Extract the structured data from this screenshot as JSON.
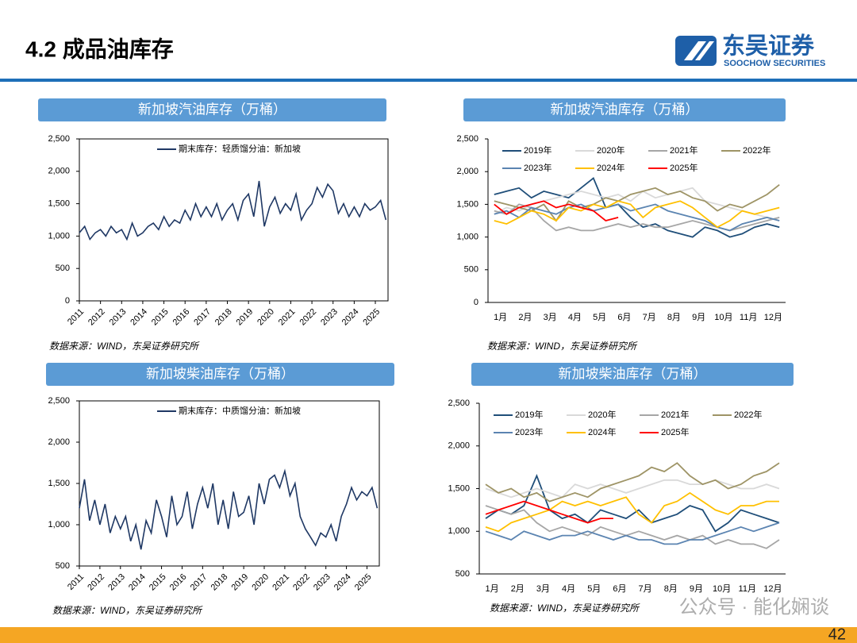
{
  "header": {
    "title": "4.2 成品油库存",
    "logo_cn": "东吴证券",
    "logo_en": "SOOCHOW SECURITIES"
  },
  "page_number": "42",
  "watermark": "公众号 · 能化娴谈",
  "chart_data": [
    {
      "type": "line",
      "title": "新加坡汽油库存（万桶）",
      "source": "数据来源：WIND，东吴证券研究所",
      "x": [
        2011,
        2011.25,
        2011.5,
        2011.75,
        2012,
        2012.25,
        2012.5,
        2012.75,
        2013,
        2013.25,
        2013.5,
        2013.75,
        2014,
        2014.25,
        2014.5,
        2014.75,
        2015,
        2015.25,
        2015.5,
        2015.75,
        2016,
        2016.25,
        2016.5,
        2016.75,
        2017,
        2017.25,
        2017.5,
        2017.75,
        2018,
        2018.25,
        2018.5,
        2018.75,
        2019,
        2019.25,
        2019.5,
        2019.75,
        2020,
        2020.25,
        2020.5,
        2020.75,
        2021,
        2021.25,
        2021.5,
        2021.75,
        2022,
        2022.25,
        2022.5,
        2022.75,
        2023,
        2023.25,
        2023.5,
        2023.75,
        2024,
        2024.25,
        2024.5,
        2024.75,
        2025,
        2025.25,
        2025.5
      ],
      "series": [
        {
          "name": "期末库存：轻质馏分油：新加坡",
          "color": "#1f3864",
          "values": [
            1050,
            1150,
            950,
            1050,
            1100,
            1000,
            1150,
            1050,
            1100,
            950,
            1200,
            1000,
            1050,
            1150,
            1200,
            1100,
            1300,
            1150,
            1250,
            1200,
            1400,
            1250,
            1500,
            1300,
            1450,
            1300,
            1500,
            1250,
            1400,
            1500,
            1250,
            1550,
            1650,
            1300,
            1850,
            1150,
            1450,
            1600,
            1350,
            1500,
            1400,
            1650,
            1250,
            1400,
            1500,
            1750,
            1600,
            1800,
            1700,
            1350,
            1500,
            1300,
            1450,
            1300,
            1500,
            1400,
            1450,
            1550,
            1250
          ]
        }
      ],
      "xlim": [
        2011,
        2025.6
      ],
      "xticks": [
        2011,
        2012,
        2013,
        2014,
        2015,
        2016,
        2017,
        2018,
        2019,
        2020,
        2021,
        2022,
        2023,
        2024,
        2025
      ],
      "ylim": [
        0,
        2500
      ],
      "yticks": [
        0,
        500,
        {
          "value": 1000,
          "label": "1,000"
        },
        {
          "value": 1500,
          "label": "1,500"
        },
        {
          "value": 2000,
          "label": "2,000"
        },
        {
          "value": 2500,
          "label": "2,500"
        }
      ]
    },
    {
      "type": "line",
      "title": "新加坡汽油库存（万桶）",
      "source": "数据来源：WIND，东吴证券研究所",
      "categories": [
        "1月",
        null,
        "2月",
        null,
        "3月",
        null,
        "4月",
        null,
        "5月",
        null,
        "6月",
        null,
        "7月",
        null,
        "8月",
        null,
        "9月",
        null,
        "10月",
        null,
        "11月",
        null,
        "12月",
        null
      ],
      "series": [
        {
          "name": "2019年",
          "color": "#1f4e79",
          "values": [
            1650,
            1700,
            1750,
            1600,
            1700,
            1650,
            1600,
            1750,
            1900,
            1450,
            1500,
            1300,
            1150,
            1200,
            1100,
            1050,
            1000,
            1150,
            1100,
            1000,
            1050,
            1150,
            1200,
            1150
          ]
        },
        {
          "name": "2020年",
          "color": "#d9d9d9",
          "values": [
            1350,
            1450,
            1400,
            1500,
            1550,
            1600,
            1650,
            1700,
            1650,
            1600,
            1650,
            1550,
            1700,
            1600,
            1650,
            1700,
            1750,
            1550,
            1500,
            1450,
            1400,
            1350,
            1300,
            1250
          ]
        },
        {
          "name": "2021年",
          "color": "#a6a6a6",
          "values": [
            1400,
            1350,
            1500,
            1450,
            1250,
            1100,
            1150,
            1100,
            1100,
            1150,
            1200,
            1150,
            1200,
            1150,
            1150,
            1200,
            1250,
            1200,
            1150,
            1100,
            1150,
            1200,
            1250,
            1300
          ]
        },
        {
          "name": "2022年",
          "color": "#9e9466",
          "values": [
            1550,
            1500,
            1450,
            1400,
            1500,
            1250,
            1550,
            1450,
            1500,
            1600,
            1550,
            1650,
            1700,
            1750,
            1650,
            1700,
            1600,
            1550,
            1400,
            1500,
            1450,
            1550,
            1650,
            1800
          ]
        },
        {
          "name": "2023年",
          "color": "#5b84b1",
          "values": [
            1350,
            1400,
            1300,
            1450,
            1400,
            1350,
            1450,
            1500,
            1400,
            1450,
            1500,
            1400,
            1450,
            1500,
            1400,
            1350,
            1300,
            1250,
            1150,
            1100,
            1200,
            1250,
            1300,
            1250
          ]
        },
        {
          "name": "2024年",
          "color": "#ffc000",
          "values": [
            1250,
            1200,
            1300,
            1400,
            1350,
            1250,
            1450,
            1400,
            1500,
            1450,
            1550,
            1500,
            1300,
            1450,
            1500,
            1550,
            1450,
            1300,
            1150,
            1250,
            1400,
            1350,
            1400,
            1450
          ]
        },
        {
          "name": "2025年",
          "color": "#ff0000",
          "values": [
            1500,
            1350,
            1450,
            1500,
            1550,
            1450,
            1500,
            1450,
            1400,
            1250,
            1300,
            null,
            null,
            null,
            null,
            null,
            null,
            null,
            null,
            null,
            null,
            null,
            null,
            null
          ]
        }
      ],
      "ylim": [
        0,
        2500
      ],
      "yticks": [
        0,
        500,
        {
          "value": 1000,
          "label": "1,000"
        },
        {
          "value": 1500,
          "label": "1,500"
        },
        {
          "value": 2000,
          "label": "2,000"
        },
        {
          "value": 2500,
          "label": "2,500"
        }
      ]
    },
    {
      "type": "line",
      "title": "新加坡柴油库存（万桶）",
      "source": "数据来源：WIND，东吴证券研究所",
      "x": [
        2011,
        2011.25,
        2011.5,
        2011.75,
        2012,
        2012.25,
        2012.5,
        2012.75,
        2013,
        2013.25,
        2013.5,
        2013.75,
        2014,
        2014.25,
        2014.5,
        2014.75,
        2015,
        2015.25,
        2015.5,
        2015.75,
        2016,
        2016.25,
        2016.5,
        2016.75,
        2017,
        2017.25,
        2017.5,
        2017.75,
        2018,
        2018.25,
        2018.5,
        2018.75,
        2019,
        2019.25,
        2019.5,
        2019.75,
        2020,
        2020.25,
        2020.5,
        2020.75,
        2021,
        2021.25,
        2021.5,
        2021.75,
        2022,
        2022.25,
        2022.5,
        2022.75,
        2023,
        2023.25,
        2023.5,
        2023.75,
        2024,
        2024.25,
        2024.5,
        2024.75,
        2025,
        2025.25,
        2025.5
      ],
      "series": [
        {
          "name": "期末库存：中质馏分油：新加坡",
          "color": "#1f3864",
          "values": [
            1200,
            1550,
            1050,
            1300,
            1000,
            1250,
            900,
            1100,
            950,
            1100,
            800,
            1000,
            700,
            1050,
            900,
            1300,
            1100,
            850,
            1350,
            1000,
            1100,
            1400,
            950,
            1250,
            1450,
            1200,
            1500,
            1000,
            1300,
            950,
            1400,
            1100,
            1150,
            1350,
            1000,
            1500,
            1250,
            1550,
            1600,
            1450,
            1650,
            1350,
            1500,
            1100,
            950,
            850,
            750,
            900,
            850,
            1000,
            800,
            1100,
            1250,
            1450,
            1300,
            1400,
            1350,
            1450,
            1200
          ]
        }
      ],
      "xlim": [
        2011,
        2025.6
      ],
      "xticks": [
        2011,
        2012,
        2013,
        2014,
        2015,
        2016,
        2017,
        2018,
        2019,
        2020,
        2021,
        2022,
        2023,
        2024,
        2025
      ],
      "ylim": [
        500,
        2500
      ],
      "yticks": [
        500,
        {
          "value": 1000,
          "label": "1,000"
        },
        {
          "value": 1500,
          "label": "1,500"
        },
        {
          "value": 2000,
          "label": "2,000"
        },
        {
          "value": 2500,
          "label": "2,500"
        }
      ]
    },
    {
      "type": "line",
      "title": "新加坡柴油库存（万桶）",
      "source": "数据来源：WIND，东吴证券研究所",
      "categories": [
        "1月",
        null,
        "2月",
        null,
        "3月",
        null,
        "4月",
        null,
        "5月",
        null,
        "6月",
        null,
        "7月",
        null,
        "8月",
        null,
        "9月",
        null,
        "10月",
        null,
        "11月",
        null,
        "12月",
        null
      ],
      "series": [
        {
          "name": "2019年",
          "color": "#1f4e79",
          "values": [
            1150,
            1250,
            1200,
            1300,
            1650,
            1250,
            1150,
            1200,
            1100,
            1250,
            1200,
            1150,
            1250,
            1100,
            1150,
            1200,
            1300,
            1250,
            1000,
            1100,
            1250,
            1200,
            1150,
            1100
          ]
        },
        {
          "name": "2020年",
          "color": "#d9d9d9",
          "values": [
            1500,
            1450,
            1400,
            1450,
            1500,
            1450,
            1400,
            1550,
            1500,
            1550,
            1500,
            1450,
            1500,
            1550,
            1600,
            1600,
            1550,
            1550,
            1600,
            1550,
            1500,
            1500,
            1550,
            1500
          ]
        },
        {
          "name": "2021年",
          "color": "#a6a6a6",
          "values": [
            1300,
            1250,
            1200,
            1250,
            1100,
            1000,
            1050,
            1000,
            950,
            1050,
            1000,
            950,
            1000,
            950,
            900,
            950,
            900,
            950,
            850,
            900,
            850,
            850,
            800,
            900
          ]
        },
        {
          "name": "2022年",
          "color": "#9e9466",
          "values": [
            1550,
            1450,
            1500,
            1400,
            1450,
            1350,
            1400,
            1450,
            1400,
            1500,
            1550,
            1600,
            1650,
            1750,
            1700,
            1800,
            1650,
            1550,
            1600,
            1500,
            1550,
            1650,
            1700,
            1800
          ]
        },
        {
          "name": "2023年",
          "color": "#5b84b1",
          "values": [
            1000,
            950,
            900,
            1000,
            950,
            900,
            950,
            950,
            1000,
            950,
            900,
            950,
            900,
            900,
            850,
            850,
            900,
            900,
            950,
            1000,
            1050,
            1000,
            1050,
            1100
          ]
        },
        {
          "name": "2024年",
          "color": "#ffc000",
          "values": [
            1050,
            1000,
            1100,
            1150,
            1200,
            1250,
            1350,
            1300,
            1350,
            1300,
            1350,
            1400,
            1200,
            1100,
            1300,
            1350,
            1450,
            1350,
            1250,
            1200,
            1300,
            1300,
            1350,
            1350
          ]
        },
        {
          "name": "2025年",
          "color": "#ff0000",
          "values": [
            1200,
            1250,
            1300,
            1350,
            1300,
            1250,
            1200,
            1150,
            1100,
            1150,
            1150,
            null,
            null,
            null,
            null,
            null,
            null,
            null,
            null,
            null,
            null,
            null,
            null,
            null
          ]
        }
      ],
      "ylim": [
        500,
        2500
      ],
      "yticks": [
        500,
        {
          "value": 1000,
          "label": "1,000"
        },
        {
          "value": 1500,
          "label": "1,500"
        },
        {
          "value": 2000,
          "label": "2,000"
        },
        {
          "value": 2500,
          "label": "2,500"
        }
      ]
    }
  ]
}
